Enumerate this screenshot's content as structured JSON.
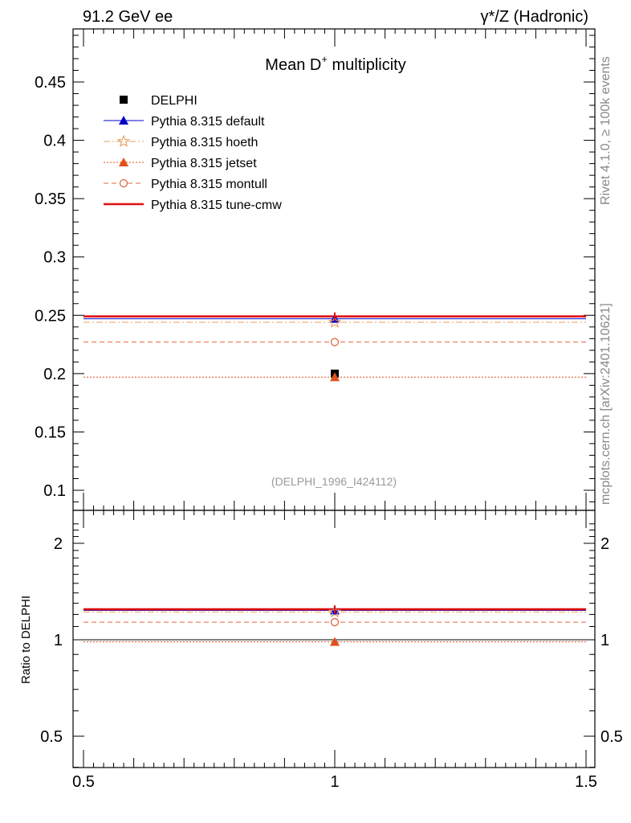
{
  "header": {
    "left": "91.2 GeV ee",
    "right": "γ*/Z (Hadronic)"
  },
  "side_text": {
    "rivet": "Rivet 4.1.0, ≥ 100k events",
    "site": "mcplots.cern.ch [arXiv:2401.10621]"
  },
  "chart_data": {
    "type": "scatter",
    "title": "Mean D+ multiplicity",
    "title_main": "Mean D",
    "title_sup": "+",
    "title_rest": " multiplicity",
    "watermark": "(DELPHI_1996_I424112)",
    "xlim": [
      0.5,
      1.5
    ],
    "x_ticks": [
      "0.5",
      "1",
      "1.5"
    ],
    "ylim_main": [
      0.085,
      0.495
    ],
    "y_ticks_main": [
      "0.1",
      "0.15",
      "0.2",
      "0.25",
      "0.3",
      "0.35",
      "0.4",
      "0.45"
    ],
    "ratio_ylabel": "Ratio to DELPHI",
    "ylim_ratio": [
      0.4,
      2.3
    ],
    "y_ticks_ratio": [
      "0.5",
      "1",
      "2"
    ],
    "series": [
      {
        "name": "DELPHI",
        "x": 1.0,
        "y": 0.2,
        "ratio": 1.0,
        "color": "#000000",
        "marker": "square",
        "line": "none"
      },
      {
        "name": "Pythia 8.315 default",
        "x": 1.0,
        "y": 0.247,
        "ratio": 1.235,
        "color": "#0000cc",
        "marker": "triangle",
        "line": "solid"
      },
      {
        "name": "Pythia 8.315 hoeth",
        "x": 1.0,
        "y": 0.244,
        "ratio": 1.22,
        "color": "#e8a060",
        "marker": "star",
        "line": "dashdot"
      },
      {
        "name": "Pythia 8.315 jetset",
        "x": 1.0,
        "y": 0.197,
        "ratio": 0.985,
        "color": "#e0501a",
        "marker": "triangle",
        "line": "dotted"
      },
      {
        "name": "Pythia 8.315 montull",
        "x": 1.0,
        "y": 0.227,
        "ratio": 1.135,
        "color": "#e06840",
        "marker": "circle",
        "line": "dashed"
      },
      {
        "name": "Pythia 8.315 tune-cmw",
        "x": 1.0,
        "y": 0.249,
        "ratio": 1.245,
        "color": "#e01010",
        "marker": "none",
        "line": "thick"
      }
    ]
  }
}
